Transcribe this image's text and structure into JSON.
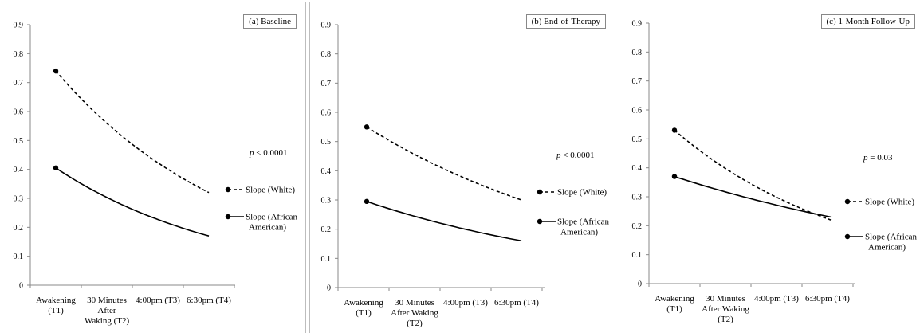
{
  "chart_data": [
    {
      "type": "line",
      "title": "(a) Baseline",
      "categories": [
        "Awakening (T1)",
        "30 Minutes After Waking (T2)",
        "4:00pm (T3)",
        "6:30pm (T4)"
      ],
      "category_lines": [
        [
          "Awakening",
          "(T1)"
        ],
        [
          "30 Minutes",
          "After",
          "Waking (T2)"
        ],
        [
          "4:00pm (T3)"
        ],
        [
          "6:30pm (T4)"
        ]
      ],
      "yticks": [
        "0",
        "0.1",
        "0.2",
        "0.3",
        "0.4",
        "0.5",
        "0.6",
        "0.7",
        "0.8",
        "0.9"
      ],
      "ylim": [
        0,
        0.9
      ],
      "grid": false,
      "series": [
        {
          "name": "Slope (White)",
          "style": "dashed",
          "start": 0.74,
          "end": 0.32
        },
        {
          "name": "Slope (African American)",
          "style": "solid",
          "start": 0.405,
          "end": 0.17
        }
      ],
      "legend": {
        "position": "right",
        "items": [
          [
            "Slope (White)"
          ],
          [
            "Slope (African",
            "American)"
          ]
        ]
      },
      "annotation": {
        "prefix": "p",
        "text": " < 0.0001"
      }
    },
    {
      "type": "line",
      "title": "(b) End-of-Therapy",
      "categories": [
        "Awakening (T1)",
        "30 Minutes After Waking (T2)",
        "4:00pm (T3)",
        "6:30pm (T4)"
      ],
      "category_lines": [
        [
          "Awakening",
          "(T1)"
        ],
        [
          "30 Minutes",
          "After Waking",
          "(T2)"
        ],
        [
          "4:00pm (T3)"
        ],
        [
          "6:30pm (T4)"
        ]
      ],
      "yticks": [
        "0",
        "0.1",
        "0.2",
        "0.3",
        "0.4",
        "0.5",
        "0.6",
        "0.7",
        "0.8",
        "0.9"
      ],
      "ylim": [
        0,
        0.9
      ],
      "grid": false,
      "series": [
        {
          "name": "Slope (White)",
          "style": "dashed",
          "start": 0.55,
          "end": 0.3
        },
        {
          "name": "Slope (African American)",
          "style": "solid",
          "start": 0.295,
          "end": 0.16
        }
      ],
      "legend": {
        "position": "right",
        "items": [
          [
            "Slope (White)"
          ],
          [
            "Slope (African",
            "American)"
          ]
        ]
      },
      "annotation": {
        "prefix": "p",
        "text": " < 0.0001"
      }
    },
    {
      "type": "line",
      "title": "(c) 1-Month Follow-Up",
      "categories": [
        "Awakening (T1)",
        "30 Minutes After Waking (T2)",
        "4:00pm (T3)",
        "6:30pm (T4)"
      ],
      "category_lines": [
        [
          "Awakening",
          "(T1)"
        ],
        [
          "30 Minutes",
          "After Waking",
          "(T2)"
        ],
        [
          "4:00pm (T3)"
        ],
        [
          "6:30pm (T4)"
        ]
      ],
      "yticks": [
        "0",
        "0.1",
        "0.2",
        "0.3",
        "0.4",
        "0.5",
        "0.6",
        "0.7",
        "0.8",
        "0.9"
      ],
      "ylim": [
        0,
        0.9
      ],
      "grid": false,
      "series": [
        {
          "name": "Slope (White)",
          "style": "dashed",
          "start": 0.53,
          "end": 0.22
        },
        {
          "name": "Slope (African American)",
          "style": "solid",
          "start": 0.37,
          "end": 0.23
        }
      ],
      "legend": {
        "position": "right",
        "items": [
          [
            "Slope (White)"
          ],
          [
            "Slope (African",
            "American)"
          ]
        ]
      },
      "annotation": {
        "prefix": "p",
        "text": " = 0.03"
      }
    }
  ]
}
